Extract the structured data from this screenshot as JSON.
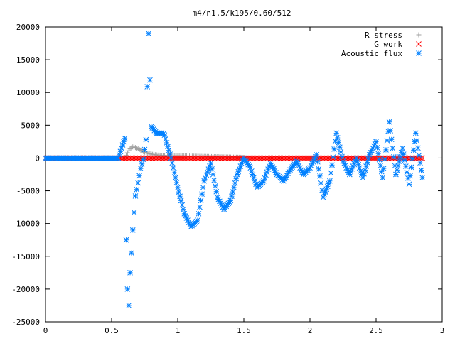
{
  "chart_data": {
    "type": "scatter",
    "title": "m4/n1.5/k195/0.60/512",
    "xlabel": "",
    "ylabel": "",
    "xlim": [
      0,
      3
    ],
    "ylim": [
      -25000,
      20000
    ],
    "x_ticks": [
      0,
      0.5,
      1,
      1.5,
      2,
      2.5,
      3
    ],
    "x_tick_labels": [
      "0",
      "0.5",
      "1",
      "1.5",
      "2",
      "2.5",
      "3"
    ],
    "y_ticks": [
      -25000,
      -20000,
      -15000,
      -10000,
      -5000,
      0,
      5000,
      10000,
      15000,
      20000
    ],
    "y_tick_labels": [
      "-25000",
      "-20000",
      "-15000",
      "-10000",
      "-5000",
      "0",
      "5000",
      "10000",
      "15000",
      "20000"
    ],
    "grid": false,
    "legend_position": "top-right",
    "series": [
      {
        "name": "R stress",
        "marker": "+",
        "color": "#a0a0a0",
        "x": [
          0.0,
          0.6,
          0.62,
          0.64,
          0.66,
          0.68,
          0.7,
          0.72,
          0.74,
          0.76,
          0.8,
          0.85,
          0.9,
          1.0,
          1.1,
          1.2,
          1.3,
          1.4,
          1.5
        ],
        "y": [
          0,
          0,
          800,
          1400,
          1700,
          1600,
          1400,
          1200,
          1000,
          800,
          600,
          450,
          400,
          350,
          300,
          250,
          200,
          150,
          100
        ]
      },
      {
        "name": "G work",
        "marker": "x",
        "color": "#ff0000",
        "x": [
          0.0,
          0.5,
          1.0,
          1.5,
          2.0,
          2.5,
          2.85
        ],
        "y": [
          0,
          0,
          0,
          0,
          0,
          0,
          0
        ]
      },
      {
        "name": "Acoustic flux",
        "marker": "*",
        "color": "#0080ff",
        "x": [
          0.0,
          0.55,
          0.6,
          0.61,
          0.62,
          0.63,
          0.64,
          0.65,
          0.66,
          0.67,
          0.68,
          0.7,
          0.72,
          0.74,
          0.76,
          0.78,
          0.8,
          0.84,
          0.88,
          0.9,
          0.95,
          1.0,
          1.05,
          1.1,
          1.15,
          1.2,
          1.25,
          1.3,
          1.35,
          1.4,
          1.45,
          1.5,
          1.55,
          1.6,
          1.65,
          1.7,
          1.75,
          1.8,
          1.85,
          1.9,
          1.95,
          2.0,
          2.05,
          2.1,
          2.15,
          2.2,
          2.25,
          2.3,
          2.35,
          2.4,
          2.45,
          2.5,
          2.55,
          2.6,
          2.65,
          2.7,
          2.75,
          2.8,
          2.85
        ],
        "y": [
          0,
          0,
          3000,
          -12500,
          -20000,
          -22500,
          -17500,
          -14500,
          -11000,
          -8300,
          -5800,
          -3800,
          -1600,
          -200,
          2800,
          19000,
          4800,
          3800,
          3800,
          3500,
          0,
          -4500,
          -8500,
          -10500,
          -9500,
          -3500,
          -800,
          -6000,
          -7800,
          -6500,
          -2500,
          0,
          -1500,
          -4500,
          -3500,
          -800,
          -2500,
          -3500,
          -1800,
          -500,
          -2500,
          -1500,
          500,
          -6000,
          -3500,
          3800,
          -500,
          -2500,
          0,
          -3000,
          500,
          2500,
          -3000,
          5500,
          -2500,
          1500,
          -4000,
          3800,
          -3000
        ]
      }
    ]
  }
}
